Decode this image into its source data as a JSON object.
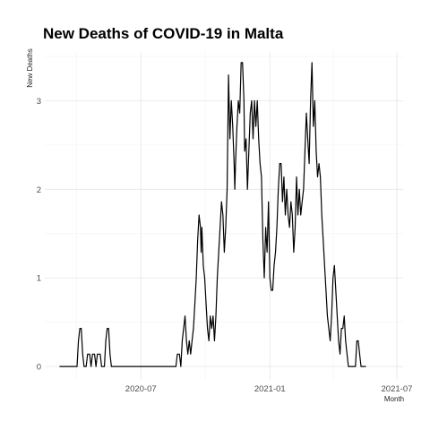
{
  "chart_data": {
    "type": "line",
    "title": "New Deaths of COVID-19 in Malta",
    "xlabel": "Month",
    "ylabel": "New Deaths",
    "x_ticks": [
      {
        "date": "2020-07-01",
        "label": "2020-07"
      },
      {
        "date": "2021-01-01",
        "label": "2021-01"
      },
      {
        "date": "2021-07-01",
        "label": "2021-07"
      }
    ],
    "y_ticks": [
      0,
      1,
      2,
      3
    ],
    "xlim": [
      "2020-02-15",
      "2021-07-10"
    ],
    "ylim": [
      -0.15,
      3.55
    ],
    "grid": true,
    "series": [
      {
        "points": [
          [
            "2020-03-07",
            0
          ],
          [
            "2020-04-01",
            0
          ],
          [
            "2020-04-03",
            0.29
          ],
          [
            "2020-04-05",
            0.43
          ],
          [
            "2020-04-07",
            0.43
          ],
          [
            "2020-04-09",
            0.14
          ],
          [
            "2020-04-11",
            0
          ],
          [
            "2020-04-14",
            0
          ],
          [
            "2020-04-16",
            0.14
          ],
          [
            "2020-04-19",
            0.14
          ],
          [
            "2020-04-21",
            0
          ],
          [
            "2020-04-23",
            0.14
          ],
          [
            "2020-04-26",
            0.14
          ],
          [
            "2020-04-28",
            0
          ],
          [
            "2020-04-30",
            0.14
          ],
          [
            "2020-05-04",
            0.14
          ],
          [
            "2020-05-06",
            0
          ],
          [
            "2020-05-10",
            0
          ],
          [
            "2020-05-12",
            0.29
          ],
          [
            "2020-05-14",
            0.43
          ],
          [
            "2020-05-16",
            0.43
          ],
          [
            "2020-05-18",
            0.14
          ],
          [
            "2020-05-20",
            0
          ],
          [
            "2020-08-20",
            0
          ],
          [
            "2020-08-22",
            0.14
          ],
          [
            "2020-08-25",
            0.14
          ],
          [
            "2020-08-27",
            0
          ],
          [
            "2020-08-29",
            0.29
          ],
          [
            "2020-08-31",
            0.43
          ],
          [
            "2020-09-02",
            0.57
          ],
          [
            "2020-09-04",
            0.29
          ],
          [
            "2020-09-06",
            0.14
          ],
          [
            "2020-09-08",
            0.29
          ],
          [
            "2020-09-10",
            0.14
          ],
          [
            "2020-09-12",
            0.29
          ],
          [
            "2020-09-14",
            0.43
          ],
          [
            "2020-09-16",
            0.71
          ],
          [
            "2020-09-18",
            1.0
          ],
          [
            "2020-09-20",
            1.43
          ],
          [
            "2020-09-22",
            1.71
          ],
          [
            "2020-09-24",
            1.57
          ],
          [
            "2020-09-25",
            1.29
          ],
          [
            "2020-09-26",
            1.57
          ],
          [
            "2020-09-28",
            1.14
          ],
          [
            "2020-09-30",
            1.0
          ],
          [
            "2020-10-02",
            0.71
          ],
          [
            "2020-10-04",
            0.43
          ],
          [
            "2020-10-06",
            0.29
          ],
          [
            "2020-10-08",
            0.57
          ],
          [
            "2020-10-10",
            0.43
          ],
          [
            "2020-10-12",
            0.57
          ],
          [
            "2020-10-14",
            0.29
          ],
          [
            "2020-10-16",
            0.57
          ],
          [
            "2020-10-18",
            1.0
          ],
          [
            "2020-10-20",
            1.29
          ],
          [
            "2020-10-22",
            1.57
          ],
          [
            "2020-10-24",
            1.86
          ],
          [
            "2020-10-26",
            1.71
          ],
          [
            "2020-10-28",
            1.29
          ],
          [
            "2020-10-30",
            1.57
          ],
          [
            "2020-11-01",
            2.0
          ],
          [
            "2020-11-03",
            3.29
          ],
          [
            "2020-11-05",
            2.57
          ],
          [
            "2020-11-07",
            3.0
          ],
          [
            "2020-11-09",
            2.71
          ],
          [
            "2020-11-11",
            2.29
          ],
          [
            "2020-11-12",
            2.0
          ],
          [
            "2020-11-13",
            2.29
          ],
          [
            "2020-11-15",
            2.71
          ],
          [
            "2020-11-17",
            3.0
          ],
          [
            "2020-11-19",
            2.86
          ],
          [
            "2020-11-21",
            3.43
          ],
          [
            "2020-11-23",
            3.43
          ],
          [
            "2020-11-25",
            3.0
          ],
          [
            "2020-11-26",
            2.43
          ],
          [
            "2020-11-28",
            2.57
          ],
          [
            "2020-11-30",
            2.0
          ],
          [
            "2020-12-02",
            2.43
          ],
          [
            "2020-12-04",
            2.86
          ],
          [
            "2020-12-06",
            3.0
          ],
          [
            "2020-12-08",
            2.57
          ],
          [
            "2020-12-10",
            3.0
          ],
          [
            "2020-12-12",
            2.71
          ],
          [
            "2020-12-14",
            3.0
          ],
          [
            "2020-12-16",
            2.57
          ],
          [
            "2020-12-18",
            2.29
          ],
          [
            "2020-12-20",
            2.14
          ],
          [
            "2020-12-22",
            1.43
          ],
          [
            "2020-12-24",
            1.0
          ],
          [
            "2020-12-26",
            1.57
          ],
          [
            "2020-12-28",
            1.29
          ],
          [
            "2020-12-30",
            1.86
          ],
          [
            "2021-01-01",
            1.0
          ],
          [
            "2021-01-03",
            0.86
          ],
          [
            "2021-01-05",
            0.86
          ],
          [
            "2021-01-07",
            1.14
          ],
          [
            "2021-01-09",
            1.29
          ],
          [
            "2021-01-11",
            1.57
          ],
          [
            "2021-01-13",
            2.0
          ],
          [
            "2021-01-15",
            2.29
          ],
          [
            "2021-01-17",
            2.29
          ],
          [
            "2021-01-19",
            1.86
          ],
          [
            "2021-01-21",
            2.14
          ],
          [
            "2021-01-23",
            1.71
          ],
          [
            "2021-01-25",
            2.0
          ],
          [
            "2021-01-27",
            1.71
          ],
          [
            "2021-01-29",
            1.57
          ],
          [
            "2021-01-31",
            1.86
          ],
          [
            "2021-02-02",
            1.71
          ],
          [
            "2021-02-04",
            1.29
          ],
          [
            "2021-02-06",
            1.57
          ],
          [
            "2021-02-08",
            2.14
          ],
          [
            "2021-02-10",
            1.71
          ],
          [
            "2021-02-12",
            2.0
          ],
          [
            "2021-02-14",
            1.71
          ],
          [
            "2021-02-16",
            1.86
          ],
          [
            "2021-02-18",
            2.0
          ],
          [
            "2021-02-20",
            2.43
          ],
          [
            "2021-02-22",
            2.86
          ],
          [
            "2021-02-24",
            2.57
          ],
          [
            "2021-02-26",
            2.29
          ],
          [
            "2021-02-28",
            3.0
          ],
          [
            "2021-03-02",
            3.43
          ],
          [
            "2021-03-04",
            2.71
          ],
          [
            "2021-03-06",
            3.0
          ],
          [
            "2021-03-08",
            2.43
          ],
          [
            "2021-03-10",
            2.14
          ],
          [
            "2021-03-12",
            2.29
          ],
          [
            "2021-03-14",
            2.14
          ],
          [
            "2021-03-16",
            1.71
          ],
          [
            "2021-03-18",
            1.43
          ],
          [
            "2021-03-20",
            1.14
          ],
          [
            "2021-03-22",
            0.86
          ],
          [
            "2021-03-24",
            0.57
          ],
          [
            "2021-03-26",
            0.43
          ],
          [
            "2021-03-28",
            0.29
          ],
          [
            "2021-03-30",
            0.57
          ],
          [
            "2021-04-01",
            1.0
          ],
          [
            "2021-04-03",
            1.14
          ],
          [
            "2021-04-05",
            0.86
          ],
          [
            "2021-04-07",
            0.57
          ],
          [
            "2021-04-09",
            0.29
          ],
          [
            "2021-04-11",
            0.14
          ],
          [
            "2021-04-13",
            0.43
          ],
          [
            "2021-04-15",
            0.43
          ],
          [
            "2021-04-17",
            0.57
          ],
          [
            "2021-04-19",
            0.29
          ],
          [
            "2021-04-21",
            0.14
          ],
          [
            "2021-04-23",
            0
          ],
          [
            "2021-05-03",
            0
          ],
          [
            "2021-05-05",
            0.29
          ],
          [
            "2021-05-07",
            0.29
          ],
          [
            "2021-05-09",
            0.14
          ],
          [
            "2021-05-11",
            0
          ],
          [
            "2021-05-18",
            0
          ]
        ]
      }
    ]
  }
}
